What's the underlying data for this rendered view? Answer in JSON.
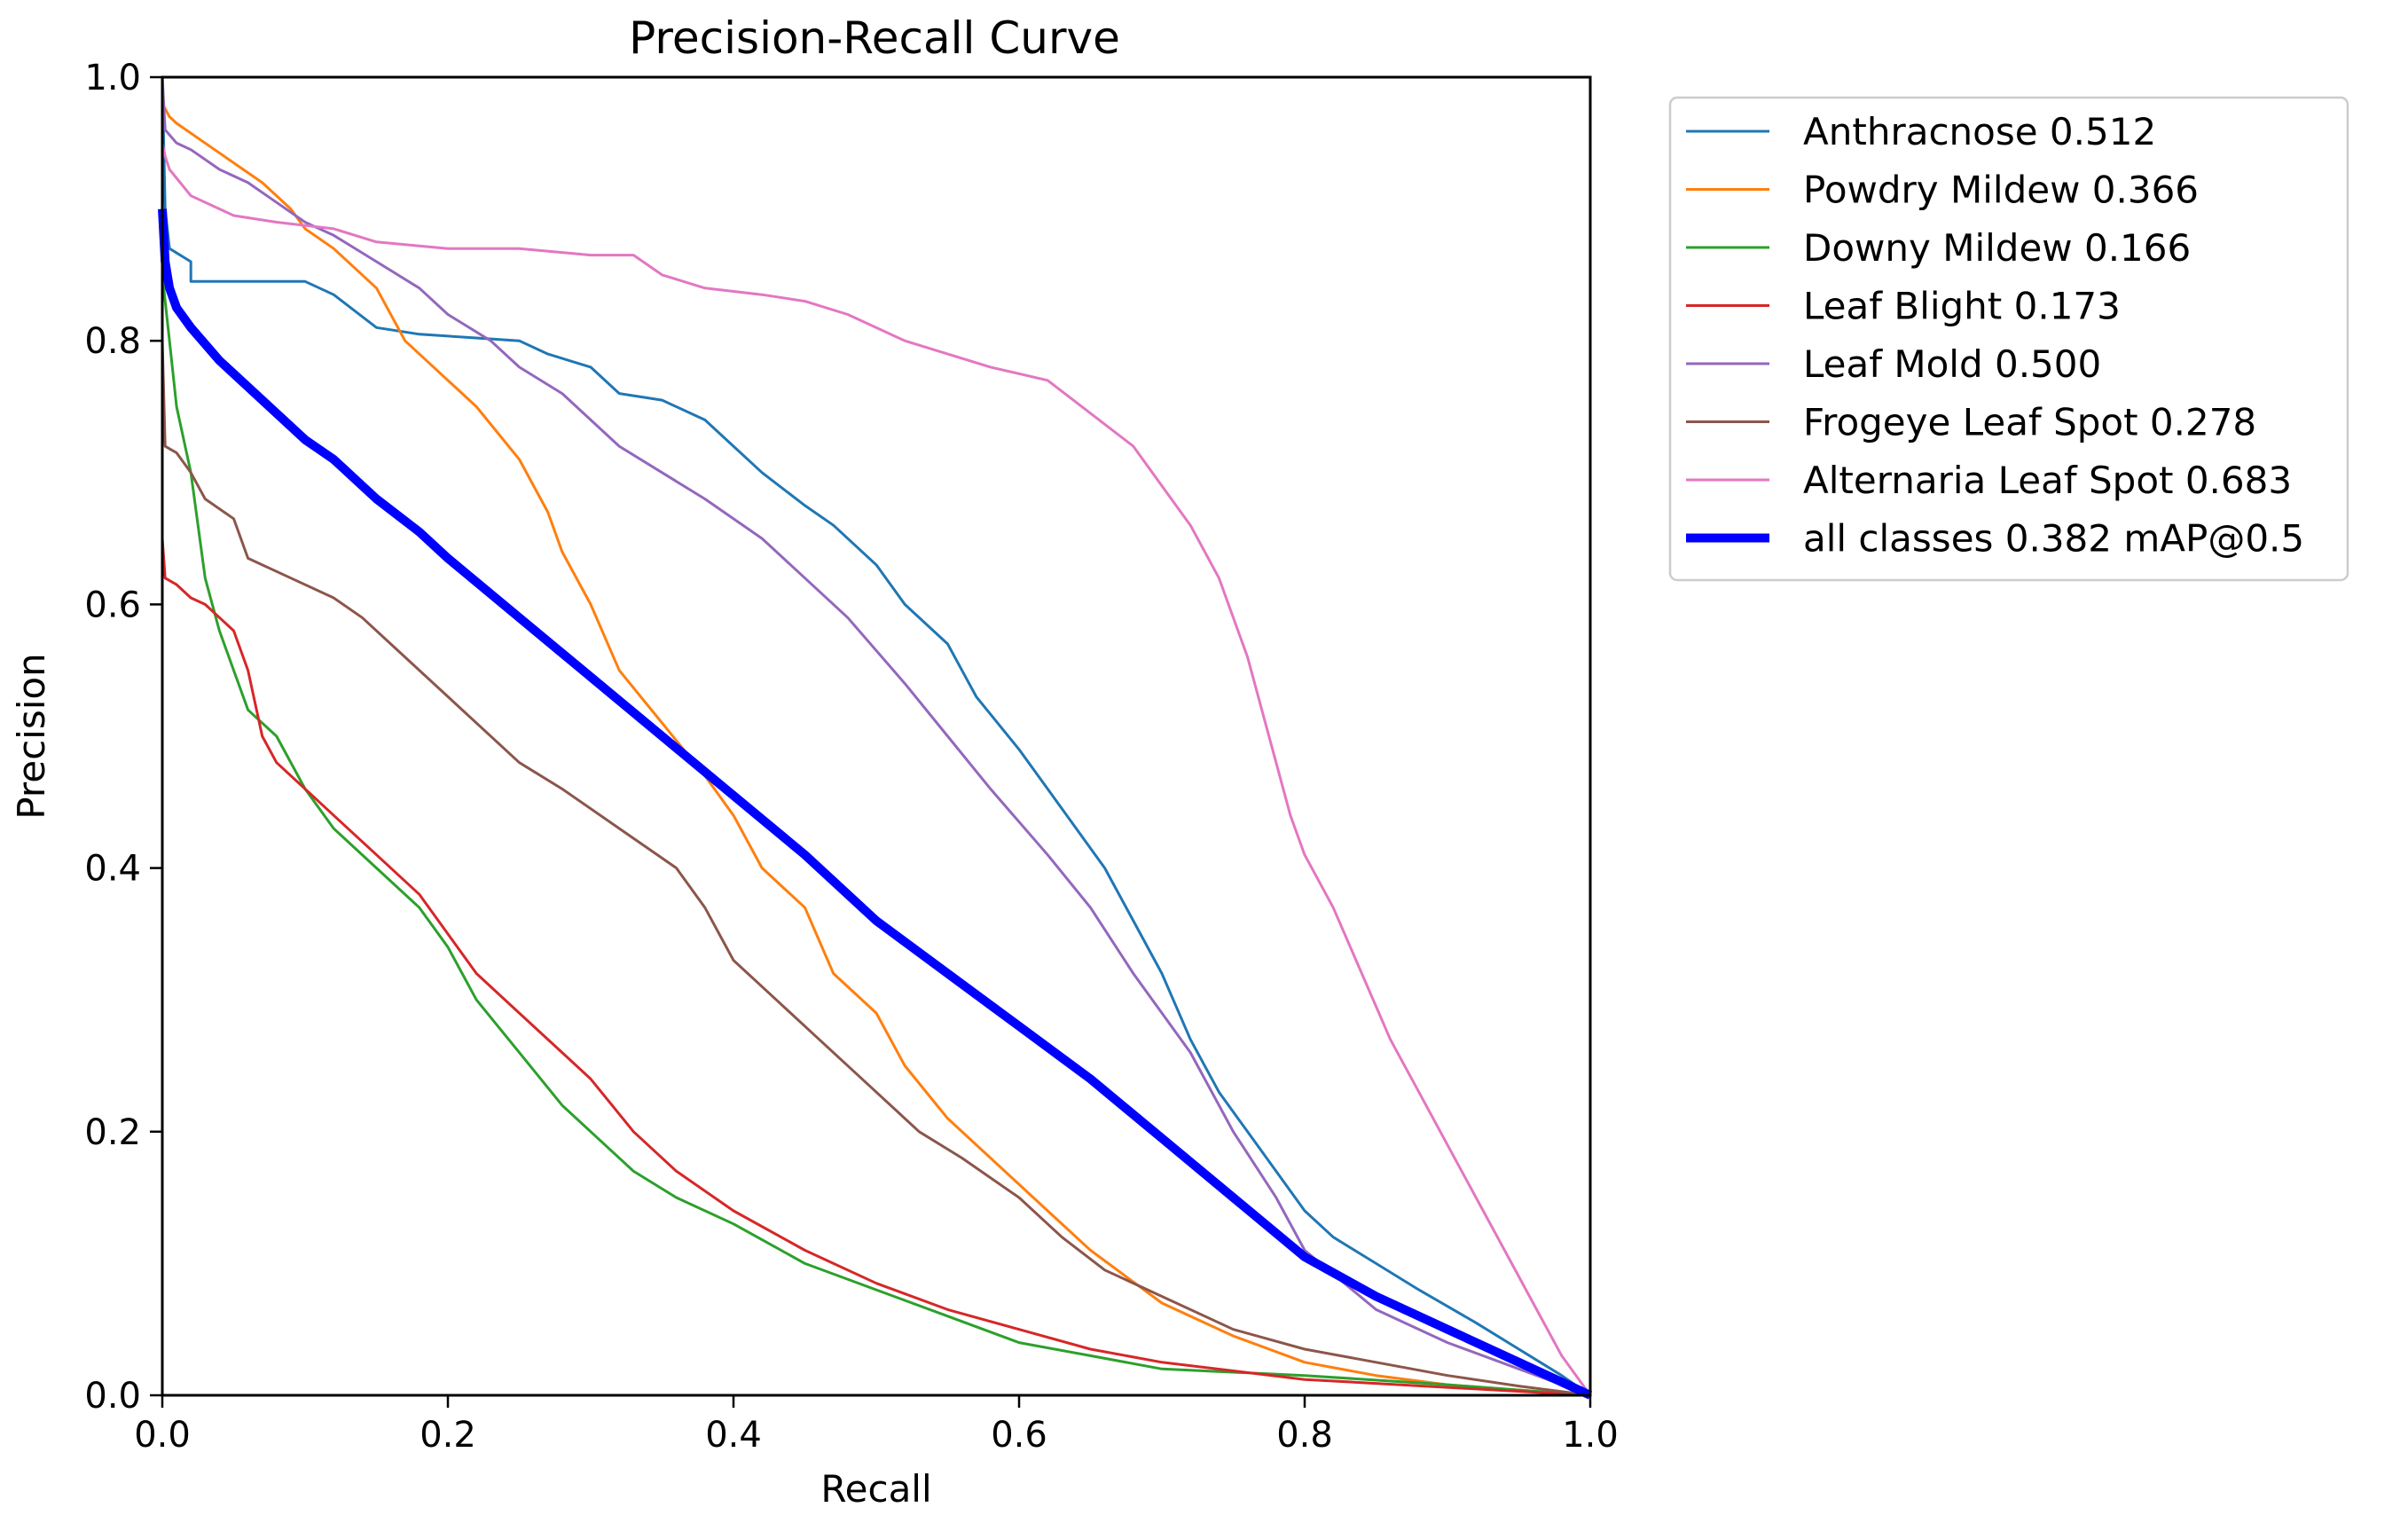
{
  "chart_data": {
    "type": "line",
    "title": "Precision-Recall Curve",
    "xlabel": "Recall",
    "ylabel": "Precision",
    "xlim": [
      0,
      1
    ],
    "ylim": [
      0,
      1
    ],
    "x_ticks": [
      "0.0",
      "0.2",
      "0.4",
      "0.6",
      "0.8",
      "1.0"
    ],
    "y_ticks": [
      "0.0",
      "0.2",
      "0.4",
      "0.6",
      "0.8",
      "1.0"
    ],
    "grid": false,
    "legend_position": "outside-top-right",
    "series": [
      {
        "name": "Anthracnose 0.512",
        "color": "#1f77b4",
        "x": [
          0,
          0.002,
          0.005,
          0.02,
          0.02,
          0.1,
          0.12,
          0.15,
          0.18,
          0.25,
          0.27,
          0.3,
          0.32,
          0.35,
          0.38,
          0.4,
          0.42,
          0.45,
          0.47,
          0.5,
          0.52,
          0.55,
          0.56,
          0.57,
          0.6,
          0.62,
          0.64,
          0.66,
          0.68,
          0.7,
          0.72,
          0.74,
          0.76,
          0.78,
          0.8,
          0.82,
          0.85,
          0.88,
          0.92,
          0.95,
          0.98,
          1.0
        ],
        "y": [
          1.0,
          0.9,
          0.87,
          0.86,
          0.845,
          0.845,
          0.835,
          0.81,
          0.805,
          0.8,
          0.79,
          0.78,
          0.76,
          0.755,
          0.74,
          0.72,
          0.7,
          0.675,
          0.66,
          0.63,
          0.6,
          0.57,
          0.55,
          0.53,
          0.49,
          0.46,
          0.43,
          0.4,
          0.36,
          0.32,
          0.27,
          0.23,
          0.2,
          0.17,
          0.14,
          0.12,
          0.1,
          0.08,
          0.055,
          0.035,
          0.015,
          0.0
        ]
      },
      {
        "name": "Powdry Mildew 0.366",
        "color": "#ff7f0e",
        "x": [
          0,
          0.005,
          0.01,
          0.03,
          0.05,
          0.07,
          0.09,
          0.1,
          0.12,
          0.15,
          0.17,
          0.2,
          0.22,
          0.25,
          0.27,
          0.28,
          0.3,
          0.32,
          0.35,
          0.38,
          0.4,
          0.42,
          0.45,
          0.47,
          0.5,
          0.52,
          0.55,
          0.58,
          0.62,
          0.65,
          0.7,
          0.75,
          0.8,
          0.85,
          0.9,
          0.95,
          1.0
        ],
        "y": [
          0.98,
          0.97,
          0.965,
          0.95,
          0.935,
          0.92,
          0.9,
          0.885,
          0.87,
          0.84,
          0.8,
          0.77,
          0.75,
          0.71,
          0.67,
          0.64,
          0.6,
          0.55,
          0.51,
          0.47,
          0.44,
          0.4,
          0.37,
          0.32,
          0.29,
          0.25,
          0.21,
          0.18,
          0.14,
          0.11,
          0.07,
          0.045,
          0.025,
          0.015,
          0.008,
          0.004,
          0.0
        ]
      },
      {
        "name": "Downy Mildew 0.166",
        "color": "#2ca02c",
        "x": [
          0,
          0.005,
          0.01,
          0.02,
          0.03,
          0.04,
          0.05,
          0.06,
          0.08,
          0.1,
          0.12,
          0.15,
          0.18,
          0.2,
          0.22,
          0.25,
          0.28,
          0.3,
          0.33,
          0.36,
          0.4,
          0.45,
          0.5,
          0.55,
          0.6,
          0.65,
          0.7,
          0.8,
          0.9,
          1.0
        ],
        "y": [
          0.85,
          0.8,
          0.75,
          0.7,
          0.62,
          0.58,
          0.55,
          0.52,
          0.5,
          0.46,
          0.43,
          0.4,
          0.37,
          0.34,
          0.3,
          0.26,
          0.22,
          0.2,
          0.17,
          0.15,
          0.13,
          0.1,
          0.08,
          0.06,
          0.04,
          0.03,
          0.02,
          0.015,
          0.008,
          0.0
        ]
      },
      {
        "name": "Leaf Blight 0.173",
        "color": "#d62728",
        "x": [
          0,
          0.002,
          0.01,
          0.02,
          0.03,
          0.05,
          0.06,
          0.07,
          0.08,
          0.1,
          0.12,
          0.15,
          0.18,
          0.2,
          0.22,
          0.25,
          0.28,
          0.3,
          0.33,
          0.36,
          0.4,
          0.45,
          0.5,
          0.55,
          0.6,
          0.65,
          0.7,
          0.8,
          0.9,
          1.0
        ],
        "y": [
          0.65,
          0.62,
          0.615,
          0.605,
          0.6,
          0.58,
          0.55,
          0.5,
          0.48,
          0.46,
          0.44,
          0.41,
          0.38,
          0.35,
          0.32,
          0.29,
          0.26,
          0.24,
          0.2,
          0.17,
          0.14,
          0.11,
          0.085,
          0.065,
          0.05,
          0.035,
          0.025,
          0.012,
          0.006,
          0.0
        ]
      },
      {
        "name": "Leaf Mold 0.500",
        "color": "#9467bd",
        "x": [
          0,
          0.002,
          0.01,
          0.02,
          0.04,
          0.06,
          0.08,
          0.1,
          0.12,
          0.15,
          0.18,
          0.2,
          0.23,
          0.25,
          0.28,
          0.32,
          0.35,
          0.38,
          0.42,
          0.45,
          0.48,
          0.52,
          0.55,
          0.58,
          0.62,
          0.65,
          0.68,
          0.72,
          0.75,
          0.78,
          0.8,
          0.85,
          0.9,
          0.95,
          1.0
        ],
        "y": [
          1.0,
          0.96,
          0.95,
          0.945,
          0.93,
          0.92,
          0.905,
          0.89,
          0.88,
          0.86,
          0.84,
          0.82,
          0.8,
          0.78,
          0.76,
          0.72,
          0.7,
          0.68,
          0.65,
          0.62,
          0.59,
          0.54,
          0.5,
          0.46,
          0.41,
          0.37,
          0.32,
          0.26,
          0.2,
          0.15,
          0.11,
          0.065,
          0.04,
          0.02,
          0.0
        ]
      },
      {
        "name": "Frogeye Leaf Spot 0.278",
        "color": "#8c564b",
        "x": [
          0,
          0.002,
          0.01,
          0.02,
          0.03,
          0.05,
          0.06,
          0.09,
          0.12,
          0.14,
          0.16,
          0.2,
          0.25,
          0.28,
          0.32,
          0.36,
          0.38,
          0.4,
          0.43,
          0.46,
          0.5,
          0.53,
          0.56,
          0.6,
          0.63,
          0.66,
          0.7,
          0.75,
          0.8,
          0.85,
          0.9,
          0.95,
          1.0
        ],
        "y": [
          0.8,
          0.72,
          0.715,
          0.7,
          0.68,
          0.665,
          0.635,
          0.62,
          0.605,
          0.59,
          0.57,
          0.53,
          0.48,
          0.46,
          0.43,
          0.4,
          0.37,
          0.33,
          0.3,
          0.27,
          0.23,
          0.2,
          0.18,
          0.15,
          0.12,
          0.095,
          0.075,
          0.05,
          0.035,
          0.025,
          0.015,
          0.007,
          0.0
        ]
      },
      {
        "name": "Alternaria Leaf Spot 0.683",
        "color": "#e377c2",
        "x": [
          0,
          0.002,
          0.005,
          0.02,
          0.05,
          0.08,
          0.12,
          0.15,
          0.2,
          0.25,
          0.3,
          0.33,
          0.35,
          0.38,
          0.42,
          0.45,
          0.48,
          0.52,
          0.55,
          0.58,
          0.62,
          0.65,
          0.68,
          0.7,
          0.72,
          0.74,
          0.76,
          0.78,
          0.79,
          0.8,
          0.82,
          0.84,
          0.86,
          0.88,
          0.9,
          0.92,
          0.94,
          0.96,
          0.98,
          1.0
        ],
        "y": [
          0.95,
          0.94,
          0.93,
          0.91,
          0.895,
          0.89,
          0.885,
          0.875,
          0.87,
          0.87,
          0.865,
          0.865,
          0.85,
          0.84,
          0.835,
          0.83,
          0.82,
          0.8,
          0.79,
          0.78,
          0.77,
          0.745,
          0.72,
          0.69,
          0.66,
          0.62,
          0.56,
          0.48,
          0.44,
          0.41,
          0.37,
          0.32,
          0.27,
          0.23,
          0.19,
          0.15,
          0.11,
          0.07,
          0.03,
          0.0
        ]
      },
      {
        "name": "all classes 0.382 mAP@0.5",
        "color": "#0000ff",
        "x": [
          0,
          0.002,
          0.005,
          0.01,
          0.02,
          0.04,
          0.06,
          0.08,
          0.1,
          0.12,
          0.15,
          0.18,
          0.2,
          0.25,
          0.3,
          0.35,
          0.4,
          0.45,
          0.5,
          0.55,
          0.6,
          0.65,
          0.7,
          0.75,
          0.8,
          0.85,
          0.9,
          0.95,
          1.0
        ],
        "y": [
          0.9,
          0.86,
          0.84,
          0.825,
          0.81,
          0.785,
          0.765,
          0.745,
          0.725,
          0.71,
          0.68,
          0.655,
          0.635,
          0.59,
          0.545,
          0.5,
          0.455,
          0.41,
          0.36,
          0.32,
          0.28,
          0.24,
          0.195,
          0.15,
          0.105,
          0.075,
          0.05,
          0.025,
          0.0
        ]
      }
    ]
  }
}
